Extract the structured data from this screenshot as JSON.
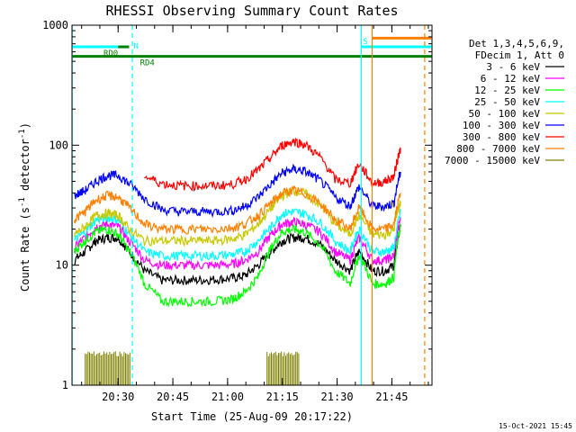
{
  "chart_data": {
    "type": "line",
    "title": "RHESSI Observing Summary Count Rates",
    "xlabel": "Start Time (25-Aug-09 20:17:22)",
    "ylabel_main": "Count Rate (s",
    "ylabel_sup": "-1",
    "ylabel_rest": " detector",
    "ylabel_sup2": "-1",
    "ylabel_close": ")",
    "y_scale": "log",
    "xlim": [
      20.2894,
      21.9333
    ],
    "ylim": [
      1,
      1000
    ],
    "x_ticks": [
      {
        "value": 20.5,
        "label": "20:30"
      },
      {
        "value": 20.75,
        "label": "20:45"
      },
      {
        "value": 21.0,
        "label": "21:00"
      },
      {
        "value": 21.25,
        "label": "21:15"
      },
      {
        "value": 21.5,
        "label": "21:30"
      },
      {
        "value": 21.75,
        "label": "21:45"
      }
    ],
    "y_ticks": [
      {
        "value": 1,
        "label": "1"
      },
      {
        "value": 10,
        "label": "10"
      },
      {
        "value": 100,
        "label": "100"
      },
      {
        "value": 1000,
        "label": "1000"
      }
    ],
    "legend_header": [
      "Det 1,3,4,5,6,9,",
      "FDecim 1, Att 0"
    ],
    "legend_position": "right",
    "series": [
      {
        "name": "3 - 6 keV",
        "color": "#000000",
        "values": [
          11,
          13,
          16,
          17,
          17,
          13,
          9,
          7.5,
          7.5,
          7.5,
          7.6,
          7.8,
          8.2,
          10,
          13,
          16,
          17,
          17,
          15,
          11,
          9,
          13,
          9,
          9,
          10,
          21
        ]
      },
      {
        "name": "6 - 12 keV",
        "color": "#ff00ff",
        "values": [
          14,
          17,
          21,
          22,
          21,
          16,
          11,
          10,
          10,
          10,
          10,
          10.2,
          11,
          13,
          18,
          22,
          23,
          22,
          19,
          13,
          11,
          17,
          11,
          11,
          12,
          25
        ]
      },
      {
        "name": "12 - 25 keV",
        "color": "#00ff00",
        "values": [
          13,
          16,
          19,
          20,
          18,
          13,
          7,
          5,
          5,
          5,
          5,
          5.2,
          6,
          8,
          14,
          19,
          20,
          19,
          15,
          9,
          7,
          12,
          7,
          7,
          8,
          22
        ]
      },
      {
        "name": "25 - 50 keV",
        "color": "#00ffff",
        "values": [
          16,
          19,
          24,
          25,
          24,
          18,
          13,
          12,
          12,
          12,
          12,
          12.3,
          13,
          16,
          21,
          27,
          28,
          27,
          23,
          16,
          13,
          20,
          13,
          13,
          14,
          28
        ]
      },
      {
        "name": "50 - 100 keV",
        "color": "#c8c800",
        "values": [
          18,
          21,
          26,
          27,
          26,
          20,
          16,
          16,
          16,
          16,
          16,
          16.5,
          18,
          22,
          30,
          38,
          42,
          40,
          32,
          22,
          18,
          26,
          18,
          18,
          20,
          34
        ]
      },
      {
        "name": "100 - 300 keV",
        "color": "#0000ff",
        "values": [
          38,
          42,
          50,
          56,
          56,
          48,
          36,
          29,
          28,
          28,
          28,
          28.5,
          31,
          37,
          48,
          59,
          63,
          61,
          51,
          37,
          31,
          45,
          31,
          31,
          33,
          60
        ]
      },
      {
        "name": "300 - 800 keV",
        "color": "#ff0000",
        "values": [
          null,
          null,
          null,
          null,
          null,
          null,
          55,
          48,
          46,
          46,
          46,
          47,
          52,
          62,
          80,
          100,
          108,
          102,
          80,
          52,
          48,
          70,
          48,
          50,
          55,
          95
        ]
      },
      {
        "name": "800 - 7000 keV",
        "color": "#ff8000",
        "values": [
          24,
          28,
          35,
          38,
          37,
          30,
          22,
          20,
          20,
          20,
          20,
          20.5,
          22,
          26,
          33,
          40,
          42,
          40,
          33,
          24,
          20,
          30,
          20,
          20,
          22,
          40
        ]
      },
      {
        "name": "7000 - 15000 keV",
        "color": "#808000",
        "values": [
          1,
          1,
          1,
          1,
          1,
          1,
          1,
          1,
          1,
          1,
          1,
          1,
          1,
          1,
          1,
          1,
          1,
          1,
          1,
          1,
          1,
          1,
          1,
          1,
          1,
          1
        ]
      }
    ],
    "x": [
      20.3,
      20.35,
      20.4,
      20.45,
      20.5,
      20.55,
      20.62,
      20.7,
      20.78,
      20.86,
      20.94,
      21.02,
      21.08,
      21.14,
      21.2,
      21.25,
      21.3,
      21.35,
      21.42,
      21.49,
      21.56,
      21.6,
      21.66,
      21.72,
      21.76,
      21.79
    ],
    "status_bars": [
      {
        "label": "N",
        "color": "#00ffff",
        "x0": 20.2894,
        "x1": 20.55,
        "y": 660
      },
      {
        "label": "RD0",
        "color": "#008000",
        "x0": 20.55,
        "x1": 20.5,
        "y": 660
      },
      {
        "label": "RD4",
        "color": "#008000",
        "x0": 20.2894,
        "x1": 21.9333,
        "y": 550
      },
      {
        "label": "S",
        "color": "#00ffff",
        "x0": 21.61,
        "x1": 21.93,
        "y": 660
      },
      {
        "label": "",
        "color": "#ff8000",
        "x0": 21.66,
        "x1": 21.93,
        "y": 780
      }
    ],
    "vertical_markers": [
      {
        "x": 20.29,
        "color": "#00ffff",
        "style": "solid"
      },
      {
        "x": 20.565,
        "color": "#00ffff",
        "style": "dashed"
      },
      {
        "x": 21.61,
        "color": "#00ffff",
        "style": "solid"
      },
      {
        "x": 21.66,
        "color": "#ff8000",
        "style": "solid"
      },
      {
        "x": 21.9,
        "color": "#ff8000",
        "style": "dashed"
      }
    ],
    "attenuator_bursts": [
      {
        "x0": 20.35,
        "x1": 20.56
      },
      {
        "x0": 21.18,
        "x1": 21.33
      }
    ]
  },
  "footer": {
    "date_stamp": "15-Oct-2021 15:45"
  }
}
